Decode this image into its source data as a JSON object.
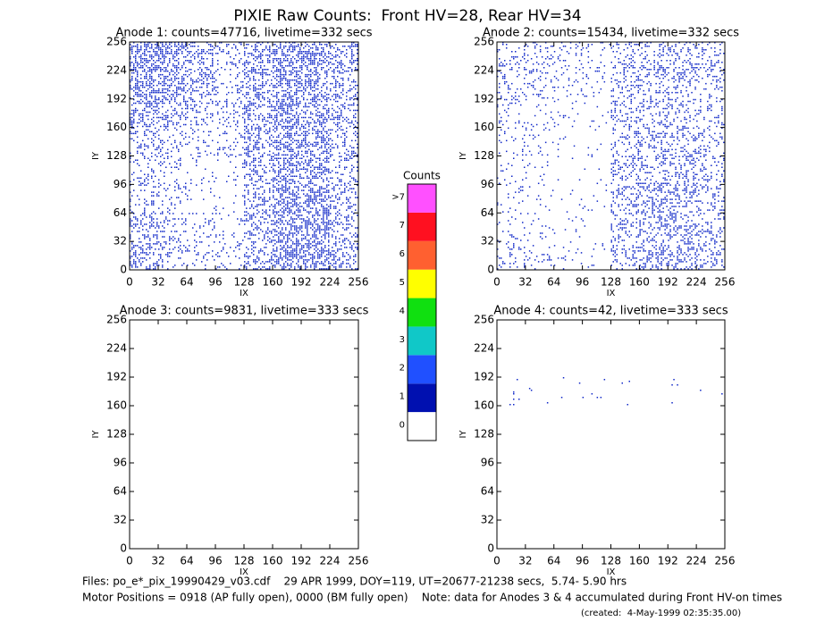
{
  "title": "PIXIE Raw Counts:  Front HV=28, Rear HV=34",
  "chart_data": [
    {
      "type": "heatmap",
      "title": "Anode 1: counts=47716, livetime=332 secs",
      "xlabel": "IX",
      "ylabel": "IY",
      "xlim": [
        0,
        256
      ],
      "ylim": [
        0,
        256
      ],
      "xticks": [
        0,
        32,
        64,
        96,
        128,
        160,
        192,
        224,
        256
      ],
      "yticks": [
        0,
        32,
        64,
        96,
        128,
        160,
        192,
        224,
        256
      ],
      "color": "#1028c8",
      "z": [
        [
          0.6,
          0.4,
          0.2,
          0.2,
          0.5,
          0.8,
          0.8,
          0.5
        ],
        [
          0.5,
          0.3,
          0.15,
          0.15,
          0.5,
          0.8,
          0.8,
          0.5
        ],
        [
          0.3,
          0.2,
          0.1,
          0.1,
          0.5,
          0.8,
          0.8,
          0.5
        ],
        [
          0.3,
          0.2,
          0.1,
          0.1,
          0.5,
          0.8,
          0.7,
          0.4
        ],
        [
          0.4,
          0.3,
          0.2,
          0.2,
          0.6,
          0.8,
          0.7,
          0.4
        ],
        [
          0.6,
          0.5,
          0.4,
          0.3,
          0.6,
          0.8,
          0.7,
          0.5
        ],
        [
          0.7,
          0.7,
          0.5,
          0.3,
          0.6,
          0.8,
          0.7,
          0.5
        ],
        [
          0.8,
          0.8,
          0.5,
          0.3,
          0.6,
          0.8,
          0.7,
          0.5
        ]
      ]
    },
    {
      "type": "heatmap",
      "title": "Anode 2: counts=15434, livetime=332 secs",
      "xlabel": "IX",
      "ylabel": "IY",
      "xlim": [
        0,
        256
      ],
      "ylim": [
        0,
        256
      ],
      "xticks": [
        0,
        32,
        64,
        96,
        128,
        160,
        192,
        224,
        256
      ],
      "yticks": [
        0,
        32,
        64,
        96,
        128,
        160,
        192,
        224,
        256
      ],
      "color": "#1028c8",
      "z": [
        [
          0.2,
          0.15,
          0.1,
          0.05,
          0.4,
          0.5,
          0.5,
          0.4
        ],
        [
          0.15,
          0.1,
          0.05,
          0.05,
          0.4,
          0.5,
          0.5,
          0.4
        ],
        [
          0.1,
          0.08,
          0.05,
          0.05,
          0.4,
          0.5,
          0.5,
          0.35
        ],
        [
          0.1,
          0.08,
          0.05,
          0.05,
          0.4,
          0.5,
          0.45,
          0.3
        ],
        [
          0.15,
          0.1,
          0.05,
          0.05,
          0.35,
          0.45,
          0.4,
          0.3
        ],
        [
          0.2,
          0.15,
          0.1,
          0.05,
          0.35,
          0.4,
          0.4,
          0.3
        ],
        [
          0.25,
          0.25,
          0.15,
          0.1,
          0.35,
          0.4,
          0.4,
          0.3
        ],
        [
          0.3,
          0.3,
          0.2,
          0.1,
          0.35,
          0.4,
          0.4,
          0.35
        ]
      ]
    },
    {
      "type": "heatmap",
      "title": "Anode 3: counts=9831, livetime=333 secs",
      "xlabel": "IX",
      "ylabel": "IY",
      "xlim": [
        0,
        256
      ],
      "ylim": [
        0,
        256
      ],
      "xticks": [
        0,
        32,
        64,
        96,
        128,
        160,
        192,
        224,
        256
      ],
      "yticks": [
        0,
        32,
        64,
        96,
        128,
        160,
        192,
        224,
        256
      ],
      "color": "#1028c8",
      "z": [
        [
          0,
          0,
          0,
          0,
          0,
          0,
          0,
          0
        ],
        [
          0,
          0,
          0,
          0,
          0,
          0,
          0,
          0
        ],
        [
          0,
          0,
          0,
          0,
          0,
          0,
          0,
          0
        ],
        [
          0,
          0,
          0,
          0,
          0,
          0,
          0,
          0
        ],
        [
          0,
          0,
          0,
          0,
          0,
          0,
          0,
          0
        ],
        [
          0,
          0,
          0,
          0,
          0,
          0,
          0,
          0
        ],
        [
          0,
          0,
          0,
          0,
          0,
          0,
          0,
          0
        ],
        [
          0,
          0,
          0,
          0,
          0,
          0,
          0,
          0
        ]
      ]
    },
    {
      "type": "heatmap",
      "title": "Anode 4: counts=42, livetime=333 secs",
      "xlabel": "IX",
      "ylabel": "IY",
      "xlim": [
        0,
        256
      ],
      "ylim": [
        0,
        256
      ],
      "xticks": [
        0,
        32,
        64,
        96,
        128,
        160,
        192,
        224,
        256
      ],
      "yticks": [
        0,
        32,
        64,
        96,
        128,
        160,
        192,
        224,
        256
      ],
      "color": "#1028c8",
      "z": [
        [
          0,
          0,
          0,
          0,
          0,
          0,
          0,
          0
        ],
        [
          0,
          0,
          0,
          0,
          0,
          0,
          0,
          0
        ],
        [
          0,
          0,
          0,
          0,
          0,
          0,
          0,
          0
        ],
        [
          0,
          0,
          0,
          0,
          0,
          0,
          0,
          0
        ],
        [
          0,
          0,
          0,
          0,
          0,
          0,
          0,
          0
        ],
        [
          0.02,
          0.02,
          0.02,
          0.02,
          0.02,
          0.02,
          0.02,
          0.02
        ],
        [
          0,
          0,
          0,
          0,
          0,
          0,
          0,
          0
        ],
        [
          0,
          0,
          0,
          0,
          0,
          0,
          0,
          0
        ]
      ]
    },
    {
      "type": "colorbar",
      "title": "Counts",
      "labels": [
        "0",
        "1",
        "2",
        "3",
        "4",
        "5",
        "6",
        "7",
        ">7"
      ],
      "colors": [
        "#ffffff",
        "#0010b0",
        "#2050ff",
        "#10c8c8",
        "#10e010",
        "#ffff00",
        "#ff6030",
        "#ff1020",
        "#ff50ff"
      ]
    }
  ],
  "footer": [
    "Files: po_e*_pix_19990429_v03.cdf    29 APR 1999, DOY=119, UT=20677-21238 secs,  5.74- 5.90 hrs",
    "Motor Positions = 0918 (AP fully open), 0000 (BM fully open)    Note: data for Anodes 3 & 4 accumulated during Front HV-on times",
    "(created:  4-May-1999 02:35:35.00)"
  ]
}
